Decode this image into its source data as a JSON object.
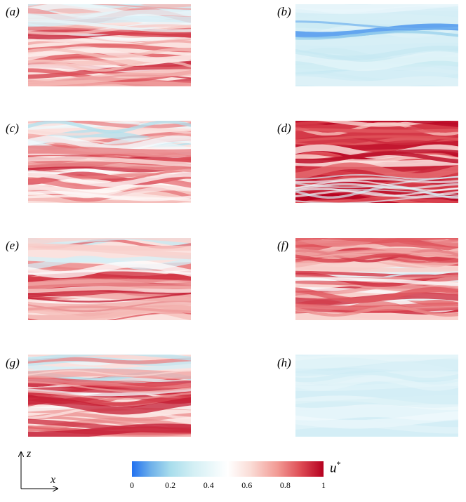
{
  "panels": [
    {
      "label": "(a)",
      "variant": "mixed"
    },
    {
      "label": "(b)",
      "variant": "blue-band"
    },
    {
      "label": "(c)",
      "variant": "mixed"
    },
    {
      "label": "(d)",
      "variant": "dense-red"
    },
    {
      "label": "(e)",
      "variant": "mixed"
    },
    {
      "label": "(f)",
      "variant": "mixed-middle"
    },
    {
      "label": "(g)",
      "variant": "mixed"
    },
    {
      "label": "(h)",
      "variant": "pale-blue"
    }
  ],
  "axes": {
    "vertical": "z",
    "horizontal": "x"
  },
  "colorbar": {
    "label": "u",
    "label_sup": "*",
    "ticks": [
      "0",
      "0.2",
      "0.4",
      "0.6",
      "0.8",
      "1"
    ],
    "range": [
      0,
      1
    ],
    "colors": [
      "#2171f0",
      "#a8ddec",
      "#ffffff",
      "#f29a94",
      "#b5001f"
    ]
  }
}
